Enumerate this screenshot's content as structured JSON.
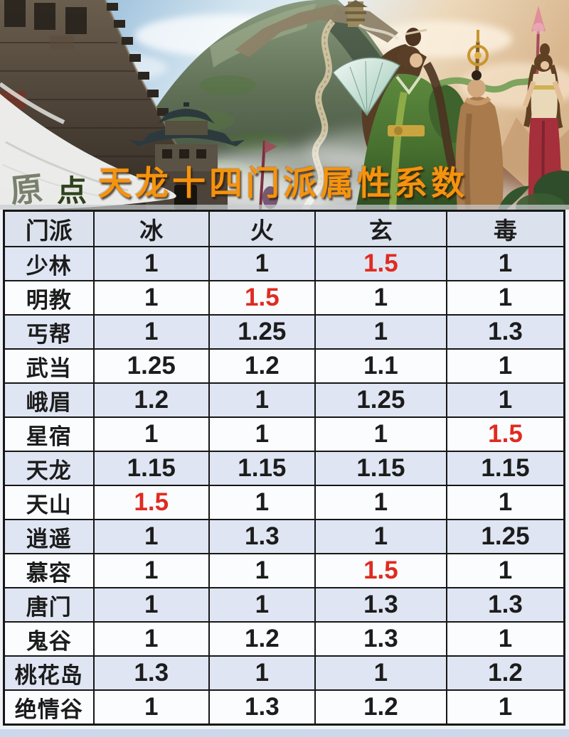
{
  "title": "天龙十四门派属性系数",
  "watermark": {
    "char1": "原",
    "char2": "点"
  },
  "colors": {
    "title_orange": "#f5930f",
    "red_value": "#e02b20",
    "header_bg": "#dbe2ee",
    "row_blue_bg": "#dfe5f2",
    "row_white_bg": "#fbfcfe",
    "table_border": "#171717",
    "bottom_strip": "#ccd9ec"
  },
  "table": {
    "headers": [
      "门派",
      "冰",
      "火",
      "玄",
      "毒"
    ],
    "rows": [
      {
        "name": "少林",
        "values": [
          "1",
          "1",
          "1.5",
          "1"
        ],
        "red": [
          2
        ]
      },
      {
        "name": "明教",
        "values": [
          "1",
          "1.5",
          "1",
          "1"
        ],
        "red": [
          1
        ]
      },
      {
        "name": "丐帮",
        "values": [
          "1",
          "1.25",
          "1",
          "1.3"
        ],
        "red": []
      },
      {
        "name": "武当",
        "values": [
          "1.25",
          "1.2",
          "1.1",
          "1"
        ],
        "red": []
      },
      {
        "name": "峨眉",
        "values": [
          "1.2",
          "1",
          "1.25",
          "1"
        ],
        "red": []
      },
      {
        "name": "星宿",
        "values": [
          "1",
          "1",
          "1",
          "1.5"
        ],
        "red": [
          3
        ]
      },
      {
        "name": "天龙",
        "values": [
          "1.15",
          "1.15",
          "1.15",
          "1.15"
        ],
        "red": []
      },
      {
        "name": "天山",
        "values": [
          "1.5",
          "1",
          "1",
          "1"
        ],
        "red": [
          0
        ]
      },
      {
        "name": "逍遥",
        "values": [
          "1",
          "1.3",
          "1",
          "1.25"
        ],
        "red": []
      },
      {
        "name": "慕容",
        "values": [
          "1",
          "1",
          "1.5",
          "1"
        ],
        "red": [
          2
        ]
      },
      {
        "name": "唐门",
        "values": [
          "1",
          "1",
          "1.3",
          "1.3"
        ],
        "red": []
      },
      {
        "name": "鬼谷",
        "values": [
          "1",
          "1.2",
          "1.3",
          "1"
        ],
        "red": []
      },
      {
        "name": "桃花岛",
        "values": [
          "1.3",
          "1",
          "1",
          "1.2"
        ],
        "red": []
      },
      {
        "name": "绝情谷",
        "values": [
          "1",
          "1.3",
          "1.2",
          "1"
        ],
        "red": []
      }
    ]
  },
  "chart_data": {
    "type": "table",
    "title": "天龙十四门派属性系数",
    "columns": [
      "门派",
      "冰",
      "火",
      "玄",
      "毒"
    ],
    "rows": [
      [
        "少林",
        1,
        1,
        1.5,
        1
      ],
      [
        "明教",
        1,
        1.5,
        1,
        1
      ],
      [
        "丐帮",
        1,
        1.25,
        1,
        1.3
      ],
      [
        "武当",
        1.25,
        1.2,
        1.1,
        1
      ],
      [
        "峨眉",
        1.2,
        1,
        1.25,
        1
      ],
      [
        "星宿",
        1,
        1,
        1,
        1.5
      ],
      [
        "天龙",
        1.15,
        1.15,
        1.15,
        1.15
      ],
      [
        "天山",
        1.5,
        1,
        1,
        1
      ],
      [
        "逍遥",
        1,
        1.3,
        1,
        1.25
      ],
      [
        "慕容",
        1,
        1,
        1.5,
        1
      ],
      [
        "唐门",
        1,
        1,
        1.3,
        1.3
      ],
      [
        "鬼谷",
        1,
        1.2,
        1.3,
        1
      ],
      [
        "桃花岛",
        1.3,
        1,
        1,
        1.2
      ],
      [
        "绝情谷",
        1,
        1.3,
        1.2,
        1
      ]
    ],
    "red_highlight_cells": [
      [
        "少林",
        "玄"
      ],
      [
        "明教",
        "火"
      ],
      [
        "星宿",
        "毒"
      ],
      [
        "天山",
        "冰"
      ],
      [
        "慕容",
        "玄"
      ]
    ]
  }
}
